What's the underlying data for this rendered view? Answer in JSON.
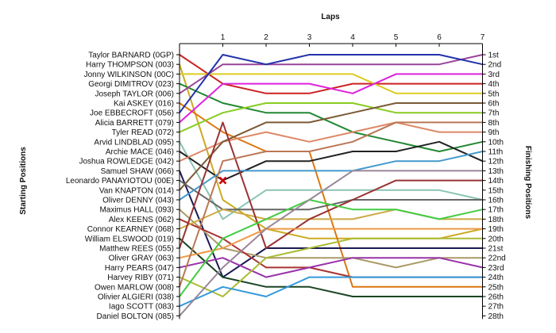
{
  "chart_data": {
    "type": "line",
    "title": "Laps",
    "ylabel_left": "Starting Positions",
    "ylabel_right": "Finishing Positions",
    "laps": [
      "1",
      "2",
      "3",
      "4",
      "5",
      "6",
      "7"
    ],
    "positions": [
      "1st",
      "2nd",
      "3rd",
      "4th",
      "5th",
      "6th",
      "7th",
      "8th",
      "9th",
      "10th",
      "11th",
      "12th",
      "13th",
      "14th",
      "15th",
      "16th",
      "17th",
      "18th",
      "19th",
      "20th",
      "21st",
      "22nd",
      "23rd",
      "24th",
      "25th",
      "26th",
      "27th",
      "28th"
    ],
    "grid": false,
    "series": [
      {
        "name": "Taylor BARNARD (0GP)",
        "color": "#cc2222",
        "positions": [
          1,
          4,
          5,
          5,
          4,
          4,
          4,
          4
        ]
      },
      {
        "name": "Harry THOMPSON (003)",
        "color": "#ccaa22",
        "positions": [
          2,
          16,
          19,
          20,
          20,
          20,
          20,
          19
        ]
      },
      {
        "name": "Jonny WILKINSON (00C)",
        "color": "#ddcc22",
        "positions": [
          3,
          3,
          3,
          3,
          3,
          5,
          5,
          5
        ]
      },
      {
        "name": "Georgi DIMITROV (023)",
        "color": "#228833",
        "positions": [
          4,
          6,
          7,
          7,
          9,
          10,
          11,
          10
        ]
      },
      {
        "name": "Joseph TAYLOR (006)",
        "color": "#994499",
        "positions": [
          5,
          2,
          2,
          2,
          2,
          2,
          2,
          1
        ]
      },
      {
        "name": "Kai ASKEY (016)",
        "color": "#dd7711",
        "positions": [
          6,
          9,
          11,
          11,
          25,
          25,
          25,
          25
        ]
      },
      {
        "name": "Joe EBBECROFT (056)",
        "color": "#2233aa",
        "positions": [
          7,
          1,
          2,
          1,
          1,
          1,
          1,
          2
        ]
      },
      {
        "name": "Alicia BARRETT (079)",
        "color": "#dd22dd",
        "positions": [
          8,
          4,
          4,
          4,
          5,
          3,
          3,
          3
        ]
      },
      {
        "name": "Tyler READ (072)",
        "color": "#88cc22",
        "positions": [
          9,
          7,
          6,
          6,
          6,
          7,
          7,
          7
        ]
      },
      {
        "name": "Arvid LINDBLAD (095)",
        "color": "#8ac4b4",
        "positions": [
          10,
          18,
          15,
          15,
          15,
          15,
          15,
          16
        ]
      },
      {
        "name": "Archie MACE (046)",
        "color": "#222222",
        "positions": [
          11,
          14,
          12,
          12,
          11,
          11,
          10,
          12
        ]
      },
      {
        "name": "Joshua ROWLEDGE (042)",
        "color": "#dd8866",
        "positions": [
          12,
          10,
          9,
          10,
          9,
          8,
          9,
          9
        ]
      },
      {
        "name": "Samuel SHAW (066)",
        "color": "#1a1a55",
        "positions": [
          13,
          24,
          21,
          21,
          21,
          21,
          21,
          21
        ]
      },
      {
        "name": "Leonardo PANAYIOTOU (00E)",
        "color": "#666666",
        "positions": [
          14,
          17,
          17,
          17,
          16,
          16,
          16,
          16
        ]
      },
      {
        "name": "Van KNAPTON (014)",
        "color": "#7a5a36",
        "positions": [
          15,
          10,
          8,
          8,
          7,
          6,
          6,
          6
        ]
      },
      {
        "name": "Oliver DENNY (043)",
        "color": "#4499cc",
        "positions": [
          16,
          13,
          13,
          13,
          13,
          12,
          12,
          11
        ]
      },
      {
        "name": "Maximus HALL (093)",
        "color": "#aa9966",
        "positions": [
          17,
          21,
          22,
          22,
          22,
          23,
          22,
          22
        ]
      },
      {
        "name": "Alex KEENS (062)",
        "color": "#aa3333",
        "positions": [
          18,
          20,
          23,
          23,
          24,
          24,
          24,
          24
        ]
      },
      {
        "name": "Connor KEARNEY (068)",
        "color": "#ccaa44",
        "positions": [
          19,
          17,
          18,
          18,
          18,
          17,
          18,
          18
        ]
      },
      {
        "name": "William ELSWOOD (019)",
        "color": "#1a4422",
        "positions": [
          20,
          24,
          25,
          25,
          26,
          26,
          26,
          26
        ]
      },
      {
        "name": "Matthew REES (055)",
        "color": "#993333",
        "positions": [
          21,
          8,
          21,
          18,
          16,
          14,
          14,
          14
        ]
      },
      {
        "name": "Oliver GRAY (063)",
        "color": "#ee9944",
        "positions": [
          22,
          21,
          19,
          19,
          19,
          19,
          19,
          19
        ]
      },
      {
        "name": "Harry PEARS (047)",
        "color": "#9933aa",
        "positions": [
          23,
          22,
          24,
          23,
          22,
          22,
          22,
          23
        ]
      },
      {
        "name": "Harvey RIBY (071)",
        "color": "#aabb33",
        "positions": [
          24,
          26,
          22,
          21,
          20,
          20,
          20,
          20
        ]
      },
      {
        "name": "Owen MARLOW (008)",
        "color": "#bb7755",
        "positions": [
          25,
          12,
          11,
          11,
          10,
          8,
          8,
          8
        ]
      },
      {
        "name": "Olivier ALGIERI (038)",
        "color": "#44cc44",
        "positions": [
          26,
          20,
          18,
          16,
          17,
          17,
          18,
          17
        ]
      },
      {
        "name": "Iago SCOTT (083)",
        "color": "#3399dd",
        "positions": [
          27,
          25,
          26,
          24,
          24,
          24,
          24,
          24
        ]
      },
      {
        "name": "Daniel BOLTON (085)",
        "color": "#998899",
        "positions": [
          28,
          23,
          19,
          16,
          13,
          13,
          13,
          13
        ]
      }
    ],
    "annotations": [
      {
        "type": "cross",
        "lap": 1,
        "position": 14,
        "color": "#cc0000"
      }
    ]
  }
}
